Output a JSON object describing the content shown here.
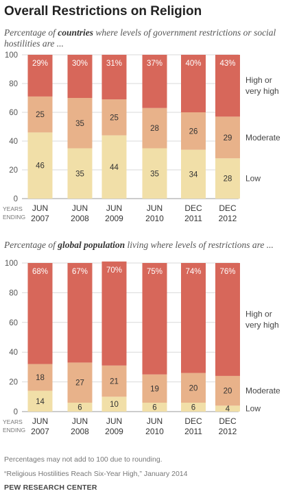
{
  "title": "Overall Restrictions on Religion",
  "panels": [
    {
      "subtitle_pre": "Percentage of ",
      "subtitle_bold": "countries",
      "subtitle_post": "  where levels of government restrictions or social hostilities are ..."
    },
    {
      "subtitle_pre": "Percentage of ",
      "subtitle_bold": "global population",
      "subtitle_post": " living where levels of restrictions are ..."
    }
  ],
  "axis_prefix": [
    "YEARS",
    "ENDING"
  ],
  "notes": {
    "rounding": "Percentages may not add to 100 due to rounding.",
    "source": "“Religious Hostilities Reach Six-Year High,” January 2014",
    "org": "PEW RESEARCH CENTER"
  },
  "colors": {
    "low": "#F1DFA8",
    "moderate": "#E8B28A",
    "high": "#D7675A",
    "grid": "#d9d9d9"
  },
  "chart_data": [
    {
      "type": "bar",
      "stacked": true,
      "categories": [
        "JUN 2007",
        "JUN 2008",
        "JUN 2009",
        "JUN 2010",
        "DEC 2011",
        "DEC 2012"
      ],
      "category_lines": [
        [
          "JUN",
          "2007"
        ],
        [
          "JUN",
          "2008"
        ],
        [
          "JUN",
          "2009"
        ],
        [
          "JUN",
          "2010"
        ],
        [
          "DEC",
          "2011"
        ],
        [
          "DEC",
          "2012"
        ]
      ],
      "ylim": [
        0,
        100
      ],
      "yticks": [
        0,
        20,
        40,
        60,
        80,
        100
      ],
      "grid": true,
      "series": [
        {
          "name": "Low",
          "label_lines": [
            "Low"
          ],
          "values": [
            46,
            35,
            44,
            35,
            34,
            28
          ],
          "labels": [
            "46",
            "35",
            "44",
            "35",
            "34",
            "28"
          ]
        },
        {
          "name": "Moderate",
          "label_lines": [
            "Moderate"
          ],
          "values": [
            25,
            35,
            25,
            28,
            26,
            29
          ],
          "labels": [
            "25",
            "35",
            "25",
            "28",
            "26",
            "29"
          ]
        },
        {
          "name": "High or very high",
          "label_lines": [
            "High or",
            "very high"
          ],
          "values": [
            29,
            30,
            31,
            37,
            40,
            43
          ],
          "labels": [
            "29%",
            "30%",
            "31%",
            "37%",
            "40%",
            "43%"
          ]
        }
      ]
    },
    {
      "type": "bar",
      "stacked": true,
      "categories": [
        "JUN 2007",
        "JUN 2008",
        "JUN 2009",
        "JUN 2010",
        "DEC 2011",
        "DEC 2012"
      ],
      "category_lines": [
        [
          "JUN",
          "2007"
        ],
        [
          "JUN",
          "2008"
        ],
        [
          "JUN",
          "2009"
        ],
        [
          "JUN",
          "2010"
        ],
        [
          "DEC",
          "2011"
        ],
        [
          "DEC",
          "2012"
        ]
      ],
      "ylim": [
        0,
        100
      ],
      "yticks": [
        0,
        20,
        40,
        60,
        80,
        100
      ],
      "grid": true,
      "series": [
        {
          "name": "Low",
          "label_lines": [
            "Low"
          ],
          "values": [
            14,
            6,
            10,
            6,
            6,
            4
          ],
          "labels": [
            "14",
            "6",
            "10",
            "6",
            "6",
            "4"
          ]
        },
        {
          "name": "Moderate",
          "label_lines": [
            "Moderate"
          ],
          "values": [
            18,
            27,
            21,
            19,
            20,
            20
          ],
          "labels": [
            "18",
            "27",
            "21",
            "19",
            "20",
            "20"
          ]
        },
        {
          "name": "High or very high",
          "label_lines": [
            "High or",
            "very high"
          ],
          "values": [
            68,
            67,
            70,
            75,
            74,
            76
          ],
          "labels": [
            "68%",
            "67%",
            "70%",
            "75%",
            "74%",
            "76%"
          ]
        }
      ]
    }
  ]
}
